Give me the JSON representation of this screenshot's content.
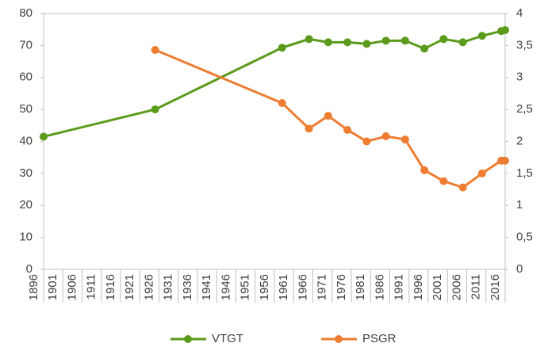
{
  "chart_data": {
    "type": "line",
    "x": [
      1896,
      1925,
      1958,
      1965,
      1970,
      1975,
      1980,
      1985,
      1990,
      1995,
      2000,
      2005,
      2010,
      2015,
      2016
    ],
    "xlim": [
      1896,
      2016
    ],
    "xticks": [
      1896,
      1901,
      1906,
      1911,
      1916,
      1921,
      1926,
      1931,
      1936,
      1941,
      1946,
      1951,
      1956,
      1961,
      1966,
      1971,
      1976,
      1981,
      1986,
      1991,
      1996,
      2001,
      2006,
      2011,
      2016
    ],
    "ylim": [
      0,
      80
    ],
    "yticks": [
      0,
      10,
      20,
      30,
      40,
      50,
      60,
      70,
      80
    ],
    "y2lim": [
      0,
      4
    ],
    "y2ticks": [
      0,
      {
        "value": 0.5,
        "label": "0,5"
      },
      1,
      {
        "value": 1.5,
        "label": "1,5"
      },
      2,
      {
        "value": 2.5,
        "label": "2,5"
      },
      3,
      {
        "value": 3.5,
        "label": "3,5"
      },
      4
    ],
    "series": [
      {
        "name": "VTGT",
        "color": "#5b9a1b",
        "values": [
          41.5,
          50,
          69.3,
          72,
          71,
          71,
          70.5,
          71.5,
          71.5,
          69,
          72,
          71,
          73,
          74.5,
          74.8
        ]
      },
      {
        "name": "PSGR",
        "color": "#ed7d31",
        "axis": "y2",
        "values": [
          null,
          3.43,
          2.6,
          2.2,
          2.4,
          2.18,
          2.0,
          2.08,
          2.03,
          1.55,
          1.38,
          1.28,
          1.5,
          1.7,
          1.7
        ]
      }
    ]
  }
}
